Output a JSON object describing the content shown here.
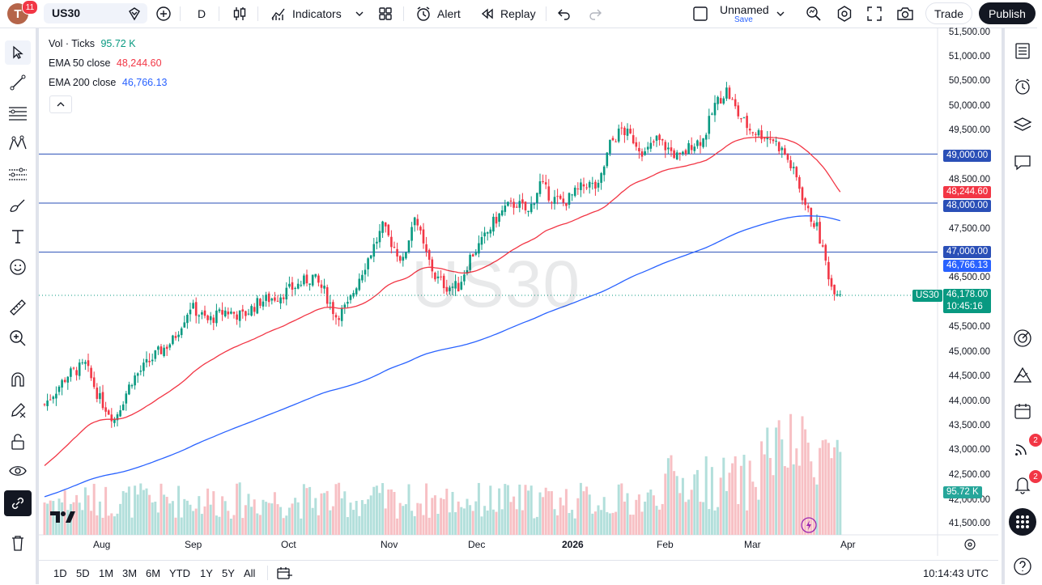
{
  "header": {
    "avatar_letter": "T",
    "notifications": "11",
    "symbol": "US30",
    "interval": "D",
    "indicators_label": "Indicators",
    "alert_label": "Alert",
    "replay_label": "Replay",
    "layout_name": "Unnamed",
    "save_label": "Save",
    "trade_label": "Trade",
    "publish_label": "Publish"
  },
  "legend": {
    "vol_label": "Vol · Ticks",
    "vol_value": "95.72 K",
    "ema50_label": "EMA 50 close",
    "ema50_value": "48,244.60",
    "ema200_label": "EMA 200 close",
    "ema200_value": "46,766.13"
  },
  "watermark": "US30",
  "price_axis": [
    "51,500.00",
    "51,000.00",
    "50,500.00",
    "50,000.00",
    "49,500.00",
    "48,500.00",
    "47,500.00",
    "46,500.00",
    "45,500.00",
    "45,000.00",
    "44,500.00",
    "44,000.00",
    "43,500.00",
    "43,000.00",
    "42,500.00",
    "42,000.00",
    "41,500.00"
  ],
  "time_axis": [
    "Aug",
    "Sep",
    "Oct",
    "Nov",
    "Dec",
    "2026",
    "Feb",
    "Mar",
    "Apr"
  ],
  "price_badges": {
    "line_49000": "49,000.00",
    "ema50": "48,244.60",
    "line_48000": "48,000.00",
    "line_47000": "47,000.00",
    "ema200": "46,766.13",
    "symbol_tag": "US30",
    "last_price": "46,178.00",
    "countdown": "10:45:16",
    "volume": "95.72 K"
  },
  "colors": {
    "up": "#089981",
    "down": "#f23645",
    "ema50": "#f23645",
    "ema200": "#2962ff",
    "hline": "#2a4fb7",
    "vol_up": "#b2dfdb",
    "vol_down": "#f7c0c4"
  },
  "timeframes": [
    "1D",
    "5D",
    "1M",
    "3M",
    "6M",
    "YTD",
    "1Y",
    "5Y",
    "All"
  ],
  "clock": "10:14:43 UTC",
  "right_badges": {
    "signals": "2",
    "alerts": "2"
  },
  "chart_data": {
    "type": "candlestick",
    "ema50_last": 48244.6,
    "ema200_last": 46766.13,
    "last": 46178.0,
    "horizontal_lines": [
      49000,
      48000,
      47000
    ]
  }
}
